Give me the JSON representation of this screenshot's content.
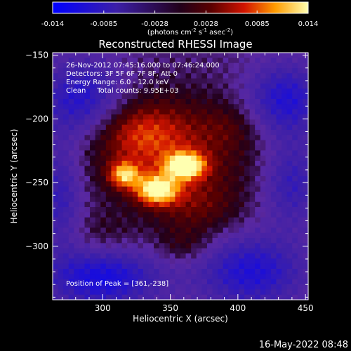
{
  "chart_data": {
    "type": "heatmap",
    "title": "Reconstructed RHESSI Image",
    "colorbar": {
      "ticks": [
        "-0.014",
        "-0.0085",
        "-0.0028",
        "0.0028",
        "0.0085",
        "0.014"
      ],
      "range": [
        -0.014,
        0.014
      ],
      "unit_parts": [
        "(photons cm",
        "-2",
        " s",
        "-1",
        " asec",
        "-2",
        ")"
      ]
    },
    "info_lines": [
      "26-Nov-2012 07:45:16.000 to 07:46:24.000",
      "Detectors: 3F 5F 6F 7F 8F, Att 0",
      "Energy Range: 6.0 - 12.0 keV",
      "Clean     Total counts: 9.95E+03"
    ],
    "peak_label": "Position of Peak = [361,-238]",
    "xlabel": "Heliocentric X (arcsec)",
    "ylabel": "Heliocentric Y (arcsec)",
    "x_ticks": [
      {
        "v": 300,
        "label": "300"
      },
      {
        "v": 350,
        "label": "350"
      },
      {
        "v": 400,
        "label": "400"
      },
      {
        "v": 450,
        "label": "450"
      }
    ],
    "y_ticks": [
      {
        "v": -150,
        "label": "−150"
      },
      {
        "v": -200,
        "label": "−200"
      },
      {
        "v": -250,
        "label": "−250"
      },
      {
        "v": -300,
        "label": "−300"
      }
    ],
    "xlim": [
      263,
      452
    ],
    "ylim": [
      -342,
      -148
    ],
    "grid": false,
    "peak": {
      "x": 361,
      "y": -238
    },
    "blobs": [
      {
        "x": 361,
        "y": -237,
        "sx": 10,
        "sy": 7,
        "a": 0.015
      },
      {
        "x": 340,
        "y": -256,
        "sx": 11,
        "sy": 8,
        "a": 0.014
      },
      {
        "x": 316,
        "y": -244,
        "sx": 8,
        "sy": 7,
        "a": 0.011
      },
      {
        "x": 350,
        "y": -225,
        "sx": 42,
        "sy": 30,
        "a": 0.007
      },
      {
        "x": 326,
        "y": -210,
        "sx": 22,
        "sy": 16,
        "a": 0.005
      },
      {
        "x": 370,
        "y": -270,
        "sx": 22,
        "sy": 16,
        "a": 0.004
      },
      {
        "x": 360,
        "y": -300,
        "sx": 14,
        "sy": 10,
        "a": 0.003
      },
      {
        "x": 300,
        "y": -290,
        "sx": 18,
        "sy": 12,
        "a": 0.002
      },
      {
        "x": 395,
        "y": -205,
        "sx": 14,
        "sy": 12,
        "a": 0.002
      },
      {
        "x": 285,
        "y": -185,
        "sx": 22,
        "sy": 22,
        "a": -0.008
      },
      {
        "x": 435,
        "y": -185,
        "sx": 20,
        "sy": 20,
        "a": -0.008
      },
      {
        "x": 300,
        "y": -325,
        "sx": 30,
        "sy": 16,
        "a": -0.009
      },
      {
        "x": 410,
        "y": -320,
        "sx": 28,
        "sy": 20,
        "a": -0.008
      },
      {
        "x": 440,
        "y": -250,
        "sx": 16,
        "sy": 24,
        "a": -0.006
      },
      {
        "x": 268,
        "y": -260,
        "sx": 12,
        "sy": 30,
        "a": -0.006
      }
    ],
    "footer_timestamp": "16-May-2022 08:48"
  }
}
